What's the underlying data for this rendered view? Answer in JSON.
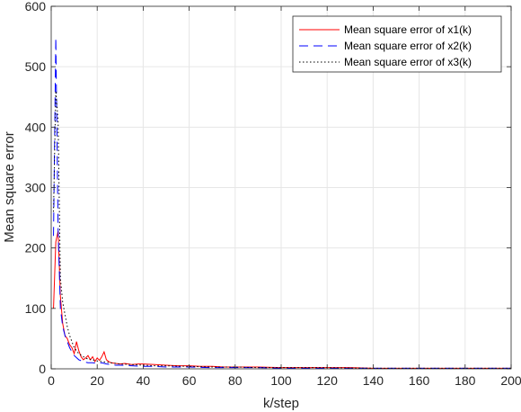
{
  "chart_data": {
    "type": "line",
    "title": "",
    "xlabel": "k/step",
    "ylabel": "Mean square error",
    "xlim": [
      0,
      200
    ],
    "ylim": [
      0,
      600
    ],
    "xticks": [
      0,
      20,
      40,
      60,
      80,
      100,
      120,
      140,
      160,
      180,
      200
    ],
    "yticks": [
      0,
      100,
      200,
      300,
      400,
      500,
      600
    ],
    "grid": true,
    "legend_position": "top-right",
    "series": [
      {
        "name": "Mean square error of x1(k)",
        "color": "#ff0000",
        "dash": "solid",
        "x": [
          1,
          2,
          3,
          4,
          5,
          6,
          7,
          8,
          9,
          10,
          11,
          12,
          13,
          14,
          15,
          16,
          17,
          18,
          19,
          20,
          21,
          22,
          23,
          24,
          25,
          26,
          28,
          30,
          32,
          35,
          38,
          40,
          45,
          50,
          55,
          60,
          65,
          70,
          75,
          80,
          90,
          100,
          110,
          120,
          130,
          140,
          150,
          160,
          170,
          180,
          190,
          200
        ],
        "y": [
          100,
          210,
          228,
          120,
          75,
          55,
          50,
          40,
          35,
          25,
          45,
          30,
          20,
          15,
          18,
          22,
          15,
          20,
          12,
          18,
          14,
          20,
          28,
          15,
          12,
          10,
          9,
          8,
          9,
          7,
          8,
          8,
          7,
          6,
          5,
          5,
          4,
          4,
          3,
          3,
          3,
          2,
          2,
          2,
          2,
          1,
          1,
          1,
          1,
          1,
          1,
          1
        ]
      },
      {
        "name": "Mean square error of x2(k)",
        "color": "#0000ff",
        "dash": "dashed",
        "x": [
          1,
          2,
          3,
          4,
          5,
          6,
          7,
          8,
          9,
          10,
          12,
          14,
          16,
          18,
          20,
          22,
          24,
          26,
          28,
          30,
          35,
          40,
          45,
          50,
          60,
          70,
          80,
          90,
          100,
          120,
          140,
          160,
          180,
          200
        ],
        "y": [
          220,
          548,
          230,
          100,
          70,
          55,
          45,
          35,
          28,
          22,
          15,
          12,
          10,
          10,
          9,
          10,
          8,
          7,
          6,
          6,
          5,
          4,
          4,
          3,
          3,
          2,
          2,
          2,
          1,
          1,
          1,
          1,
          1,
          1
        ]
      },
      {
        "name": "Mean square error of x3(k)",
        "color": "#000000",
        "dash": "dotted",
        "x": [
          1,
          2,
          3,
          4,
          5,
          6,
          7,
          8,
          9,
          10,
          12,
          14,
          16,
          18,
          20,
          22,
          24,
          26,
          28,
          30,
          35,
          40,
          45,
          50,
          60,
          70,
          80,
          90,
          100,
          120,
          140,
          160,
          180,
          200
        ],
        "y": [
          260,
          460,
          410,
          150,
          110,
          90,
          70,
          55,
          45,
          35,
          25,
          20,
          16,
          15,
          13,
          12,
          11,
          10,
          9,
          8,
          7,
          6,
          5,
          5,
          4,
          3,
          3,
          2,
          2,
          2,
          1,
          1,
          1,
          1
        ]
      }
    ]
  }
}
